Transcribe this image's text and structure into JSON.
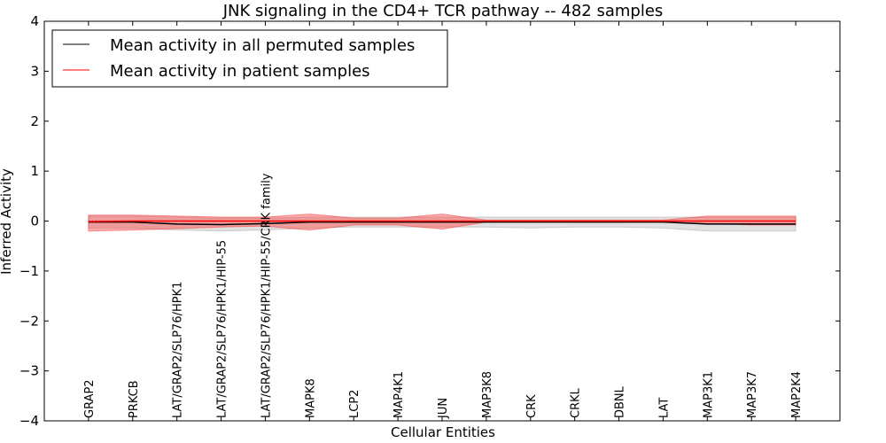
{
  "chart_data": {
    "type": "line",
    "title": "JNK signaling in the CD4+ TCR pathway -- 482 samples",
    "xlabel": "Cellular Entities",
    "ylabel": "Inferred Activity",
    "ylim": [
      -4,
      4
    ],
    "xlim": [
      -1,
      17
    ],
    "yticks": [
      "4",
      "3",
      "2",
      "1",
      "0",
      "−1",
      "−2",
      "−3",
      "−4"
    ],
    "ytick_values": [
      4,
      3,
      2,
      1,
      0,
      -1,
      -2,
      -3,
      -4
    ],
    "categories": [
      "GRAP2",
      "PRKCB",
      "LAT/GRAP2/SLP76/HPK1",
      "LAT/GRAP2/SLP76/HPK1/HIP-55",
      "LAT/GRAP2/SLP76/HPK1/HIP-55/CRK family",
      "MAPK8",
      "LCP2",
      "MAP4K1",
      "JUN",
      "MAP3K8",
      "CRK",
      "CRKL",
      "DBNL",
      "LAT",
      "MAP3K1",
      "MAP3K7",
      "MAP2K4"
    ],
    "legend_position": "top-left",
    "series": [
      {
        "name": "Mean activity in all permuted samples",
        "color": "#000000",
        "values": [
          -0.02,
          -0.02,
          -0.06,
          -0.07,
          -0.05,
          -0.02,
          -0.02,
          -0.02,
          -0.02,
          -0.02,
          -0.02,
          -0.02,
          -0.02,
          -0.02,
          -0.06,
          -0.06,
          -0.06
        ],
        "band_upper": [
          0.1,
          0.1,
          0.08,
          0.06,
          0.06,
          0.08,
          0.08,
          0.08,
          0.08,
          0.08,
          0.08,
          0.08,
          0.08,
          0.08,
          0.08,
          0.08,
          0.08
        ],
        "band_lower": [
          -0.14,
          -0.14,
          -0.18,
          -0.2,
          -0.18,
          -0.14,
          -0.12,
          -0.12,
          -0.12,
          -0.12,
          -0.14,
          -0.12,
          -0.12,
          -0.14,
          -0.2,
          -0.2,
          -0.2
        ]
      },
      {
        "name": "Mean activity in patient samples",
        "color": "#ff0000",
        "values": [
          -0.01,
          0,
          0,
          0,
          0,
          0,
          0,
          0,
          0,
          0,
          0,
          0,
          0,
          0,
          0,
          0,
          0
        ],
        "band_upper": [
          0.12,
          0.12,
          0.1,
          0.08,
          0.08,
          0.14,
          0.06,
          0.06,
          0.14,
          0.02,
          0.02,
          0.02,
          0.02,
          0.02,
          0.1,
          0.1,
          0.1
        ],
        "band_lower": [
          -0.2,
          -0.18,
          -0.15,
          -0.12,
          -0.1,
          -0.18,
          -0.08,
          -0.08,
          -0.16,
          -0.02,
          -0.02,
          -0.02,
          -0.02,
          -0.02,
          -0.05,
          -0.08,
          -0.08
        ]
      }
    ],
    "reference_line": 0
  }
}
